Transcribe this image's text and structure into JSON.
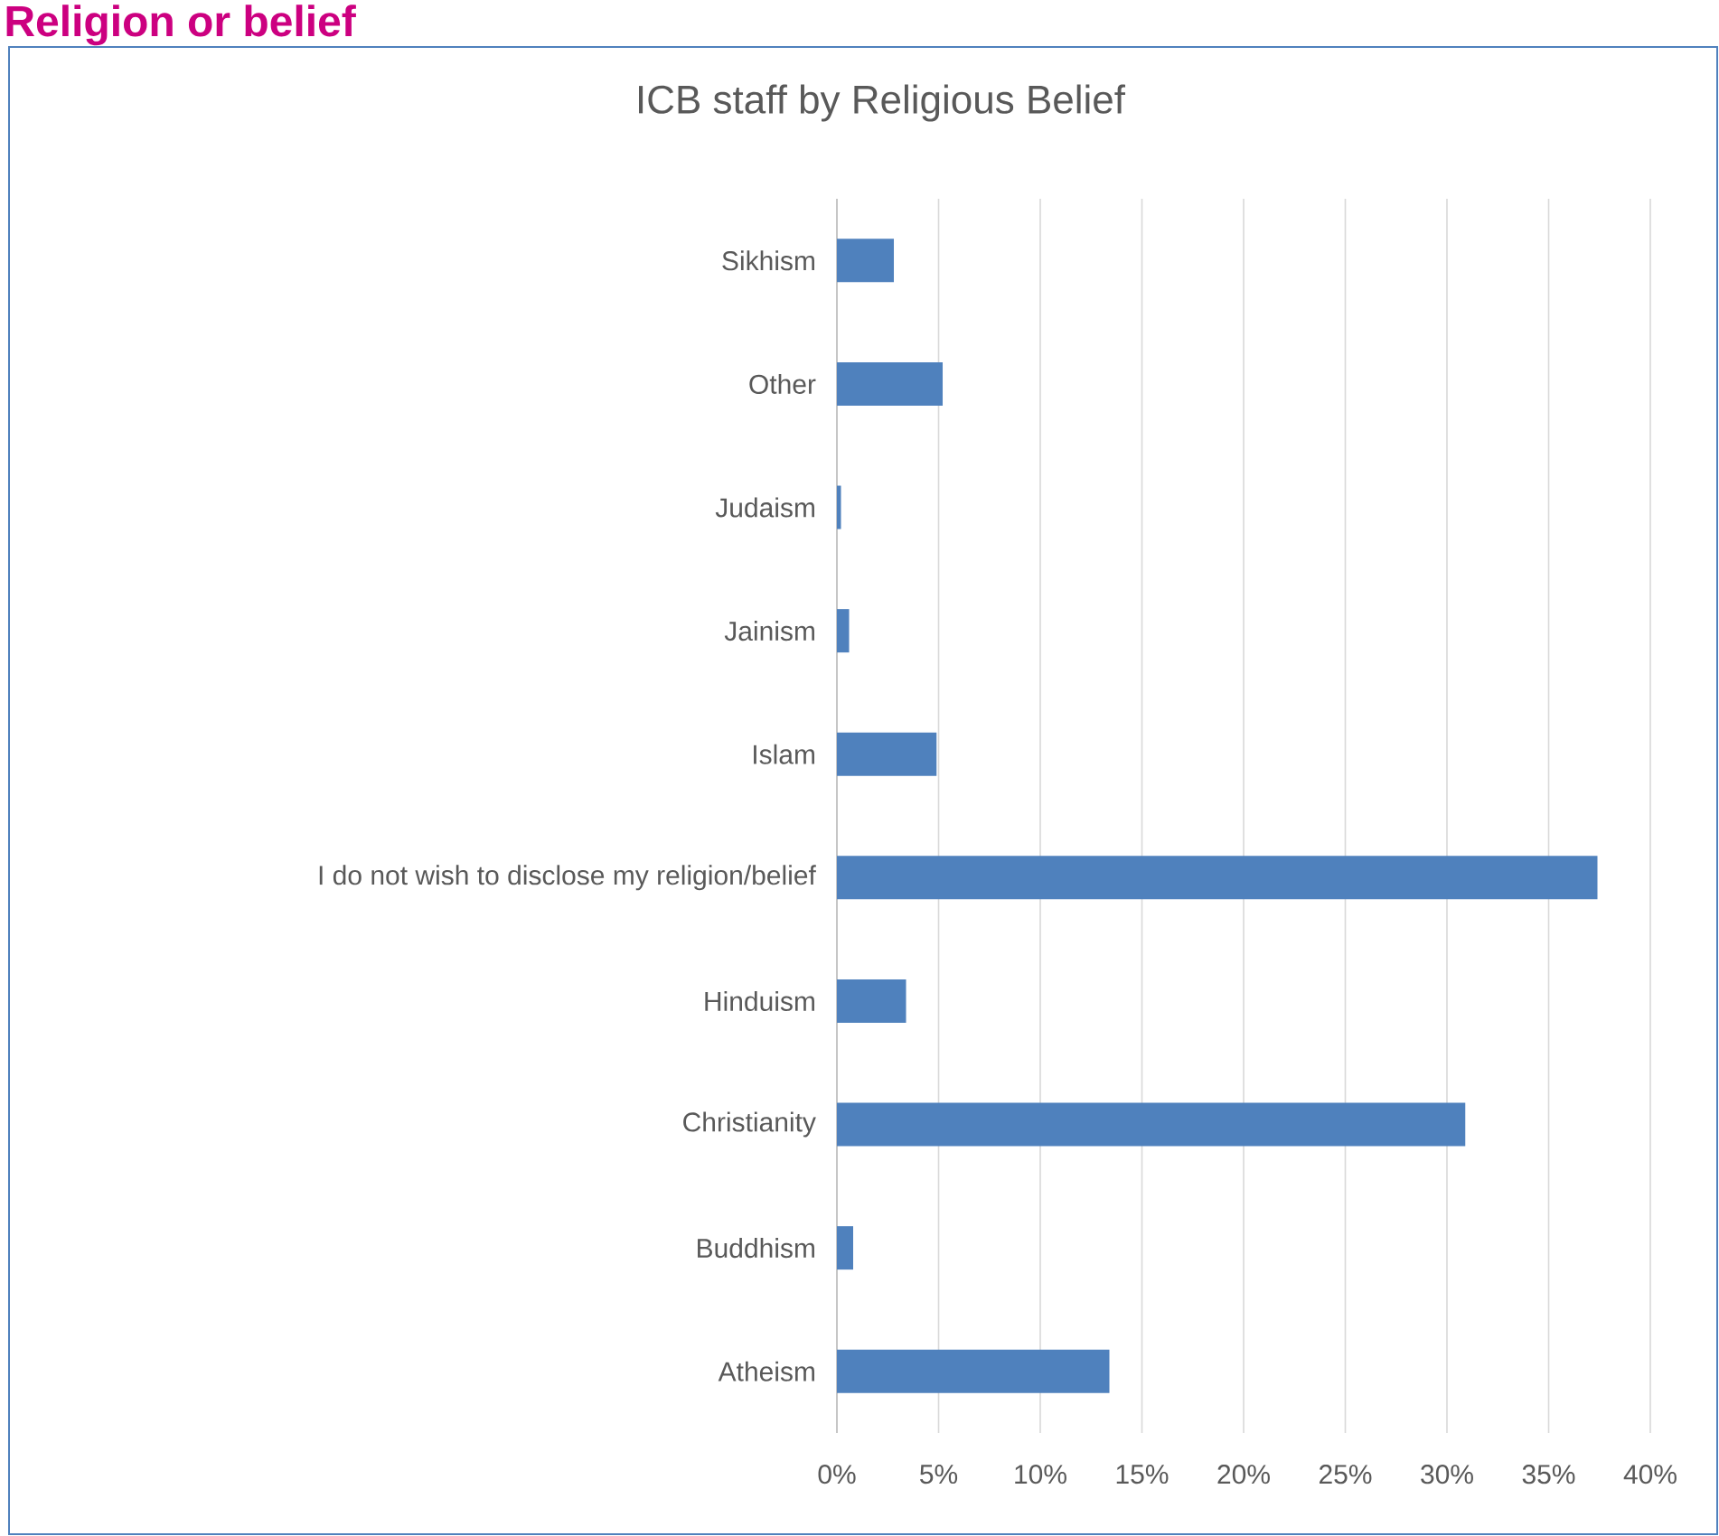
{
  "chart_data": {
    "type": "bar",
    "orientation": "horizontal",
    "title": "ICB staff by Religious Belief",
    "annotations": [
      "Religion or belief"
    ],
    "categories": [
      "Sikhism",
      "Other",
      "Judaism",
      "Jainism",
      "Islam",
      "I do not wish to disclose my religion/belief",
      "Hinduism",
      "Christianity",
      "Buddhism",
      "Atheism"
    ],
    "values": [
      2.8,
      5.2,
      0.2,
      0.6,
      4.9,
      37.4,
      3.4,
      30.9,
      0.8,
      13.4
    ],
    "color": "#4f81bd",
    "xlim": [
      0,
      40
    ],
    "xticks": [
      {
        "value": 0,
        "label": "0%"
      },
      {
        "value": 5,
        "label": "5%"
      },
      {
        "value": 10,
        "label": "10%"
      },
      {
        "value": 15,
        "label": "15%"
      },
      {
        "value": 20,
        "label": "20%"
      },
      {
        "value": 25,
        "label": "25%"
      },
      {
        "value": 30,
        "label": "30%"
      },
      {
        "value": 35,
        "label": "35%"
      },
      {
        "value": 40,
        "label": "40%"
      }
    ],
    "grid": "x"
  }
}
